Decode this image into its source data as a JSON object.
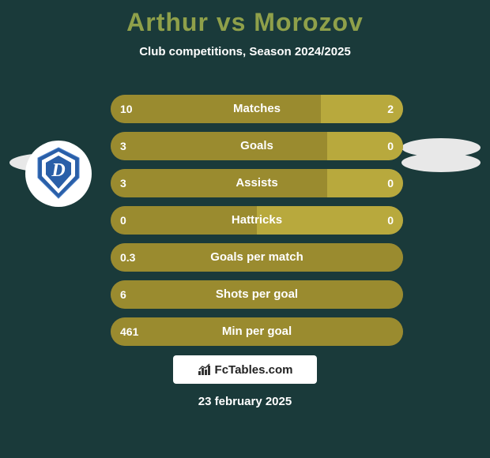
{
  "background_color": "#1a3a3a",
  "title": "Arthur vs Morozov",
  "title_color": "#8fa04a",
  "title_fontsize": 32,
  "subtitle": "Club competitions, Season 2024/2025",
  "subtitle_color": "#ffffff",
  "left_avatar": {
    "ellipse_color": "#e8e8e8"
  },
  "right_avatar": {
    "ellipse_color": "#e8e8e8"
  },
  "left_club": {
    "badge_bg": "#ffffff",
    "crest_outer": "#2a5fa8",
    "crest_inner": "#ffffff",
    "crest_letter": "D"
  },
  "right_club": {
    "placeholder": true
  },
  "bar_style": {
    "height": 36,
    "radius": 18,
    "gap": 11,
    "label_color": "#ffffff",
    "value_color": "#ffffff",
    "left_color": "#9a8b2f",
    "right_color": "#b8a93d",
    "neutral_color": "#555555",
    "container_width": 370
  },
  "stats": [
    {
      "label": "Matches",
      "left_value": "10",
      "right_value": "2",
      "left_pct": 72,
      "right_pct": 28
    },
    {
      "label": "Goals",
      "left_value": "3",
      "right_value": "0",
      "left_pct": 74,
      "right_pct": 26
    },
    {
      "label": "Assists",
      "left_value": "3",
      "right_value": "0",
      "left_pct": 74,
      "right_pct": 26
    },
    {
      "label": "Hattricks",
      "left_value": "0",
      "right_value": "0",
      "left_pct": 50,
      "right_pct": 50
    },
    {
      "label": "Goals per match",
      "left_value": "0.3",
      "right_value": "",
      "left_pct": 100,
      "right_pct": 0
    },
    {
      "label": "Shots per goal",
      "left_value": "6",
      "right_value": "",
      "left_pct": 100,
      "right_pct": 0
    },
    {
      "label": "Min per goal",
      "left_value": "461",
      "right_value": "",
      "left_pct": 100,
      "right_pct": 0
    }
  ],
  "footer": {
    "brand": "FcTables.com",
    "date": "23 february 2025",
    "brand_bg": "#ffffff",
    "brand_text": "#222222"
  }
}
